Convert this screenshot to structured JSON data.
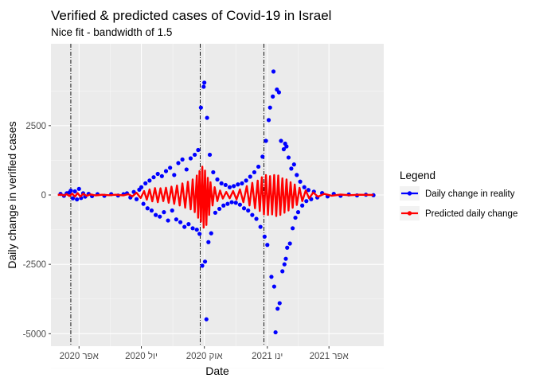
{
  "chart_data": {
    "type": "scatter",
    "title": "Verified & predicted cases of Covid-19 in Israel",
    "subtitle": "Nice fit - bandwidth of 1.5",
    "xlabel": "Date",
    "ylabel": "Daily change in verified cases",
    "x_tick_labels": [
      "אפר 2020",
      "יול 2020",
      "אוק 2020",
      "ינו 2021",
      "אפר 2021"
    ],
    "x_tick_dates": [
      "2020-04-01",
      "2020-07-01",
      "2020-10-01",
      "2021-01-01",
      "2021-04-01"
    ],
    "xlim": [
      "2020-02-20",
      "2021-06-20"
    ],
    "y_ticks": [
      -5000,
      -2500,
      0,
      2500
    ],
    "y_tick_labels": [
      "-5000",
      "-2500",
      "0",
      "2500"
    ],
    "ylim": [
      -5450,
      5450
    ],
    "vlines": [
      "2020-03-20",
      "2020-09-25",
      "2020-12-27"
    ],
    "grid": true,
    "legend": {
      "title": "Legend",
      "position": "right",
      "entries": [
        {
          "label": "Daily change in reality",
          "color": "#0000ff"
        },
        {
          "label": "Predicted daily change",
          "color": "#ff0000"
        }
      ]
    },
    "series": [
      {
        "name": "Daily change in reality",
        "color": "#0000ff",
        "points": [
          [
            "2020-03-05",
            40
          ],
          [
            "2020-03-10",
            -30
          ],
          [
            "2020-03-14",
            60
          ],
          [
            "2020-03-18",
            90
          ],
          [
            "2020-03-20",
            160
          ],
          [
            "2020-03-23",
            -120
          ],
          [
            "2020-03-26",
            130
          ],
          [
            "2020-03-29",
            -160
          ],
          [
            "2020-04-01",
            220
          ],
          [
            "2020-04-04",
            -110
          ],
          [
            "2020-04-07",
            60
          ],
          [
            "2020-04-10",
            -60
          ],
          [
            "2020-04-15",
            40
          ],
          [
            "2020-04-20",
            -40
          ],
          [
            "2020-04-28",
            30
          ],
          [
            "2020-05-08",
            -30
          ],
          [
            "2020-05-18",
            30
          ],
          [
            "2020-05-28",
            -20
          ],
          [
            "2020-06-05",
            30
          ],
          [
            "2020-06-10",
            60
          ],
          [
            "2020-06-15",
            -90
          ],
          [
            "2020-06-20",
            110
          ],
          [
            "2020-06-24",
            -150
          ],
          [
            "2020-06-28",
            190
          ],
          [
            "2020-07-01",
            280
          ],
          [
            "2020-07-04",
            -320
          ],
          [
            "2020-07-07",
            420
          ],
          [
            "2020-07-10",
            -480
          ],
          [
            "2020-07-13",
            520
          ],
          [
            "2020-07-16",
            -560
          ],
          [
            "2020-07-19",
            640
          ],
          [
            "2020-07-22",
            -720
          ],
          [
            "2020-07-25",
            760
          ],
          [
            "2020-07-28",
            -780
          ],
          [
            "2020-07-31",
            680
          ],
          [
            "2020-08-03",
            -620
          ],
          [
            "2020-08-06",
            860
          ],
          [
            "2020-08-09",
            -920
          ],
          [
            "2020-08-12",
            980
          ],
          [
            "2020-08-15",
            -560
          ],
          [
            "2020-08-18",
            720
          ],
          [
            "2020-08-21",
            -880
          ],
          [
            "2020-08-24",
            1150
          ],
          [
            "2020-08-27",
            -980
          ],
          [
            "2020-08-30",
            1280
          ],
          [
            "2020-09-02",
            -1150
          ],
          [
            "2020-09-05",
            920
          ],
          [
            "2020-09-08",
            -1050
          ],
          [
            "2020-09-11",
            1320
          ],
          [
            "2020-09-14",
            -1200
          ],
          [
            "2020-09-17",
            1450
          ],
          [
            "2020-09-20",
            -1250
          ],
          [
            "2020-09-22",
            1620
          ],
          [
            "2020-09-24",
            -1400
          ],
          [
            "2020-09-26",
            3150
          ],
          [
            "2020-09-28",
            -2550
          ],
          [
            "2020-09-30",
            3900
          ],
          [
            "2020-10-01",
            4050
          ],
          [
            "2020-10-02",
            -2400
          ],
          [
            "2020-10-04",
            -4480
          ],
          [
            "2020-10-05",
            2780
          ],
          [
            "2020-10-07",
            -1700
          ],
          [
            "2020-10-09",
            1450
          ],
          [
            "2020-10-11",
            -1380
          ],
          [
            "2020-10-14",
            820
          ],
          [
            "2020-10-17",
            -640
          ],
          [
            "2020-10-20",
            560
          ],
          [
            "2020-10-23",
            -500
          ],
          [
            "2020-10-26",
            420
          ],
          [
            "2020-10-29",
            -380
          ],
          [
            "2020-11-01",
            360
          ],
          [
            "2020-11-04",
            -320
          ],
          [
            "2020-11-07",
            280
          ],
          [
            "2020-11-10",
            -260
          ],
          [
            "2020-11-13",
            320
          ],
          [
            "2020-11-16",
            -280
          ],
          [
            "2020-11-19",
            380
          ],
          [
            "2020-11-22",
            -350
          ],
          [
            "2020-11-25",
            420
          ],
          [
            "2020-11-28",
            -480
          ],
          [
            "2020-12-01",
            520
          ],
          [
            "2020-12-04",
            -560
          ],
          [
            "2020-12-07",
            660
          ],
          [
            "2020-12-10",
            -720
          ],
          [
            "2020-12-13",
            820
          ],
          [
            "2020-12-16",
            -860
          ],
          [
            "2020-12-19",
            1020
          ],
          [
            "2020-12-22",
            -1150
          ],
          [
            "2020-12-25",
            1380
          ],
          [
            "2020-12-28",
            -1500
          ],
          [
            "2020-12-30",
            1950
          ],
          [
            "2021-01-01",
            -1800
          ],
          [
            "2021-01-03",
            2700
          ],
          [
            "2021-01-05",
            3150
          ],
          [
            "2021-01-07",
            -2950
          ],
          [
            "2021-01-09",
            3550
          ],
          [
            "2021-01-10",
            4450
          ],
          [
            "2021-01-11",
            -3300
          ],
          [
            "2021-01-13",
            -4950
          ],
          [
            "2021-01-15",
            3800
          ],
          [
            "2021-01-16",
            -4100
          ],
          [
            "2021-01-18",
            3700
          ],
          [
            "2021-01-19",
            -3900
          ],
          [
            "2021-01-21",
            1950
          ],
          [
            "2021-01-23",
            -2750
          ],
          [
            "2021-01-25",
            1650
          ],
          [
            "2021-01-26",
            -2500
          ],
          [
            "2021-01-27",
            1850
          ],
          [
            "2021-01-28",
            -2300
          ],
          [
            "2021-01-29",
            1750
          ],
          [
            "2021-01-30",
            -1900
          ],
          [
            "2021-02-01",
            1350
          ],
          [
            "2021-02-03",
            -1750
          ],
          [
            "2021-02-05",
            950
          ],
          [
            "2021-02-07",
            -1200
          ],
          [
            "2021-02-09",
            1100
          ],
          [
            "2021-02-11",
            -820
          ],
          [
            "2021-02-13",
            720
          ],
          [
            "2021-02-15",
            -620
          ],
          [
            "2021-02-18",
            480
          ],
          [
            "2021-02-21",
            -380
          ],
          [
            "2021-02-24",
            280
          ],
          [
            "2021-02-27",
            -220
          ],
          [
            "2021-03-02",
            180
          ],
          [
            "2021-03-06",
            -150
          ],
          [
            "2021-03-10",
            120
          ],
          [
            "2021-03-15",
            -90
          ],
          [
            "2021-03-22",
            70
          ],
          [
            "2021-03-30",
            -50
          ],
          [
            "2021-04-08",
            40
          ],
          [
            "2021-04-18",
            -30
          ],
          [
            "2021-04-30",
            20
          ],
          [
            "2021-05-12",
            -15
          ],
          [
            "2021-05-25",
            10
          ],
          [
            "2021-06-05",
            -8
          ]
        ]
      },
      {
        "name": "Predicted daily change",
        "color": "#ff0000",
        "points": [
          [
            "2020-03-01",
            0
          ],
          [
            "2020-03-06",
            15
          ],
          [
            "2020-03-10",
            -20
          ],
          [
            "2020-03-14",
            30
          ],
          [
            "2020-03-18",
            -40
          ],
          [
            "2020-03-22",
            50
          ],
          [
            "2020-03-26",
            -60
          ],
          [
            "2020-03-30",
            70
          ],
          [
            "2020-04-03",
            -60
          ],
          [
            "2020-04-07",
            45
          ],
          [
            "2020-04-12",
            -30
          ],
          [
            "2020-04-18",
            20
          ],
          [
            "2020-04-25",
            -15
          ],
          [
            "2020-05-05",
            10
          ],
          [
            "2020-05-15",
            -10
          ],
          [
            "2020-05-25",
            10
          ],
          [
            "2020-06-05",
            -15
          ],
          [
            "2020-06-12",
            30
          ],
          [
            "2020-06-18",
            -50
          ],
          [
            "2020-06-24",
            80
          ],
          [
            "2020-06-30",
            -110
          ],
          [
            "2020-07-05",
            140
          ],
          [
            "2020-07-09",
            -170
          ],
          [
            "2020-07-13",
            200
          ],
          [
            "2020-07-17",
            -230
          ],
          [
            "2020-07-21",
            250
          ],
          [
            "2020-07-25",
            -260
          ],
          [
            "2020-07-29",
            240
          ],
          [
            "2020-08-02",
            -220
          ],
          [
            "2020-08-06",
            260
          ],
          [
            "2020-08-10",
            -280
          ],
          [
            "2020-08-14",
            300
          ],
          [
            "2020-08-18",
            -320
          ],
          [
            "2020-08-22",
            340
          ],
          [
            "2020-08-26",
            -380
          ],
          [
            "2020-08-30",
            420
          ],
          [
            "2020-09-03",
            -460
          ],
          [
            "2020-09-07",
            480
          ],
          [
            "2020-09-11",
            -520
          ],
          [
            "2020-09-14",
            560
          ],
          [
            "2020-09-17",
            -620
          ],
          [
            "2020-09-20",
            700
          ],
          [
            "2020-09-22",
            -820
          ],
          [
            "2020-09-24",
            860
          ],
          [
            "2020-09-26",
            -960
          ],
          [
            "2020-09-28",
            1020
          ],
          [
            "2020-09-30",
            -1180
          ],
          [
            "2020-10-02",
            880
          ],
          [
            "2020-10-04",
            -1080
          ],
          [
            "2020-10-06",
            620
          ],
          [
            "2020-10-08",
            -720
          ],
          [
            "2020-10-10",
            460
          ],
          [
            "2020-10-13",
            -380
          ],
          [
            "2020-10-16",
            280
          ],
          [
            "2020-10-20",
            -220
          ],
          [
            "2020-10-24",
            160
          ],
          [
            "2020-10-28",
            -130
          ],
          [
            "2020-11-02",
            110
          ],
          [
            "2020-11-07",
            -120
          ],
          [
            "2020-11-12",
            140
          ],
          [
            "2020-11-17",
            -160
          ],
          [
            "2020-11-22",
            200
          ],
          [
            "2020-11-27",
            -260
          ],
          [
            "2020-12-02",
            320
          ],
          [
            "2020-12-06",
            -380
          ],
          [
            "2020-12-10",
            440
          ],
          [
            "2020-12-14",
            -480
          ],
          [
            "2020-12-18",
            520
          ],
          [
            "2020-12-21",
            -580
          ],
          [
            "2020-12-24",
            640
          ],
          [
            "2020-12-27",
            -700
          ],
          [
            "2020-12-30",
            720
          ],
          [
            "2021-01-02",
            -720
          ],
          [
            "2021-01-05",
            680
          ],
          [
            "2021-01-08",
            -700
          ],
          [
            "2021-01-11",
            720
          ],
          [
            "2021-01-14",
            -760
          ],
          [
            "2021-01-17",
            700
          ],
          [
            "2021-01-20",
            -720
          ],
          [
            "2021-01-23",
            600
          ],
          [
            "2021-01-26",
            -640
          ],
          [
            "2021-01-29",
            560
          ],
          [
            "2021-02-01",
            -560
          ],
          [
            "2021-02-04",
            460
          ],
          [
            "2021-02-07",
            -460
          ],
          [
            "2021-02-10",
            380
          ],
          [
            "2021-02-13",
            -360
          ],
          [
            "2021-02-17",
            260
          ],
          [
            "2021-02-21",
            -220
          ],
          [
            "2021-02-26",
            160
          ],
          [
            "2021-03-03",
            -120
          ],
          [
            "2021-03-09",
            90
          ],
          [
            "2021-03-16",
            -60
          ],
          [
            "2021-03-25",
            40
          ],
          [
            "2021-04-05",
            -25
          ],
          [
            "2021-04-18",
            15
          ],
          [
            "2021-05-01",
            -10
          ],
          [
            "2021-05-15",
            8
          ],
          [
            "2021-06-05",
            0
          ]
        ]
      }
    ]
  }
}
